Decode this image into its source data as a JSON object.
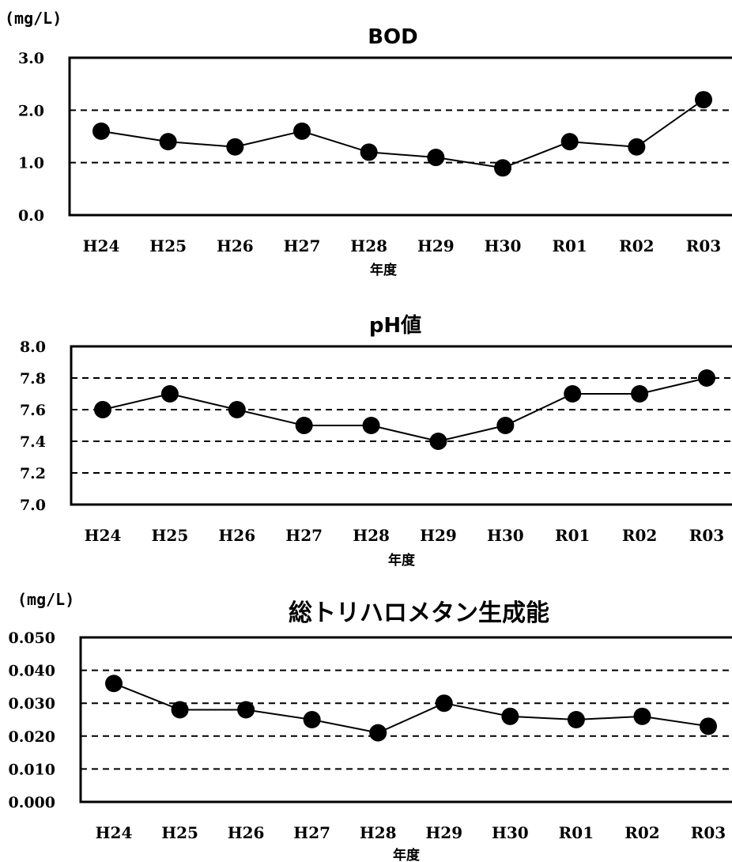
{
  "chart_data": [
    {
      "type": "line",
      "title": "BOD",
      "unit": "(mg/L)",
      "xlabel": "年度",
      "categories": [
        "H24",
        "H25",
        "H26",
        "H27",
        "H28",
        "H29",
        "H30",
        "R01",
        "R02",
        "R03"
      ],
      "values": [
        1.6,
        1.4,
        1.3,
        1.6,
        1.2,
        1.1,
        0.9,
        1.4,
        1.3,
        2.2
      ],
      "ylim": [
        0,
        3
      ],
      "yticks": [
        "0.0",
        "1.0",
        "2.0",
        "3.0"
      ],
      "grid": true
    },
    {
      "type": "line",
      "title": "pH値",
      "unit": "",
      "xlabel": "年度",
      "categories": [
        "H24",
        "H25",
        "H26",
        "H27",
        "H28",
        "H29",
        "H30",
        "R01",
        "R02",
        "R03"
      ],
      "values": [
        7.6,
        7.7,
        7.6,
        7.5,
        7.5,
        7.4,
        7.5,
        7.7,
        7.7,
        7.8
      ],
      "ylim": [
        7.0,
        8.0
      ],
      "yticks": [
        "7.0",
        "7.2",
        "7.4",
        "7.6",
        "7.8",
        "8.0"
      ],
      "grid": true
    },
    {
      "type": "line",
      "title": "総トリハロメタン生成能",
      "unit": "(mg/L)",
      "xlabel": "年度",
      "categories": [
        "H24",
        "H25",
        "H26",
        "H27",
        "H28",
        "H29",
        "H30",
        "R01",
        "R02",
        "R03"
      ],
      "values": [
        0.036,
        0.028,
        0.028,
        0.025,
        0.021,
        0.03,
        0.026,
        0.025,
        0.026,
        0.023
      ],
      "ylim": [
        0,
        0.05
      ],
      "yticks": [
        "0.000",
        "0.010",
        "0.020",
        "0.030",
        "0.040",
        "0.050"
      ],
      "grid": true
    }
  ]
}
